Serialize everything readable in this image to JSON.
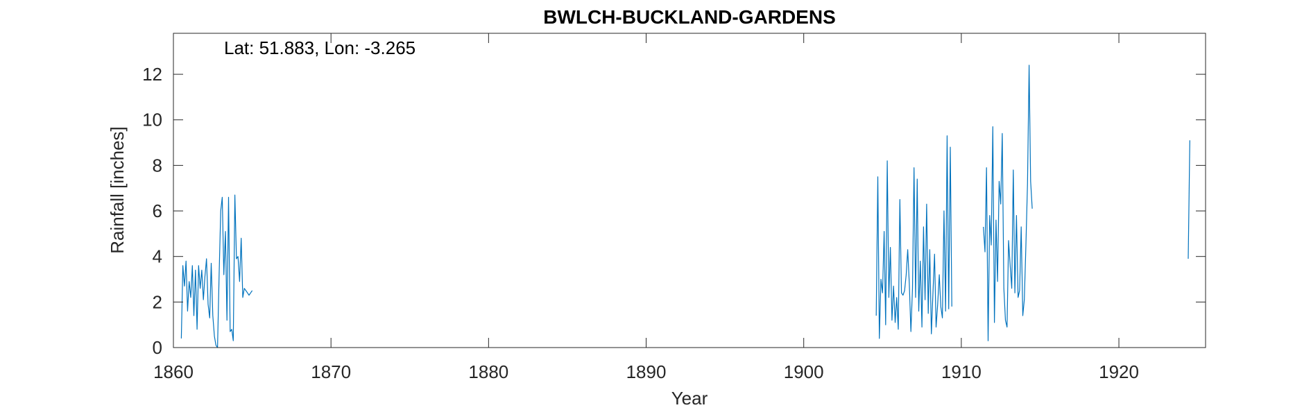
{
  "chart_data": {
    "type": "line",
    "title": "BWLCH-BUCKLAND-GARDENS",
    "annotation": "Lat: 51.883, Lon: -3.265",
    "xlabel": "Year",
    "ylabel": "Rainfall [inches]",
    "xlim": [
      1860,
      1925.5
    ],
    "ylim": [
      0,
      13.8
    ],
    "xticks": [
      "1860",
      "1870",
      "1880",
      "1890",
      "1900",
      "1910",
      "1920"
    ],
    "yticks": [
      "0",
      "2",
      "4",
      "6",
      "8",
      "10",
      "12"
    ],
    "grid": false,
    "line_color": "#0072BD",
    "segments": [
      {
        "x": [
          1860.5,
          1860.6,
          1860.7,
          1860.8,
          1860.9,
          1861.0,
          1861.1,
          1861.2,
          1861.3,
          1861.4,
          1861.5,
          1861.6,
          1861.7,
          1861.8,
          1861.9,
          1862.0,
          1862.1,
          1862.2,
          1862.3,
          1862.4,
          1862.5,
          1862.6,
          1862.7,
          1862.8,
          1862.9,
          1863.0,
          1863.1,
          1863.2,
          1863.3,
          1863.4,
          1863.5,
          1863.6,
          1863.7,
          1863.8,
          1863.9,
          1864.0,
          1864.1,
          1864.2,
          1864.3,
          1864.4,
          1864.5,
          1864.6,
          1864.7,
          1864.8,
          1864.9,
          1865.0
        ],
        "y": [
          0.4,
          3.6,
          2.7,
          3.8,
          1.6,
          2.9,
          2.2,
          3.6,
          1.4,
          3.4,
          0.8,
          3.6,
          2.6,
          3.4,
          2.1,
          3.1,
          3.9,
          1.9,
          1.3,
          3.7,
          1.4,
          0.5,
          0.1,
          0.0,
          3.2,
          6.0,
          6.6,
          3.2,
          5.1,
          1.2,
          6.6,
          0.7,
          0.8,
          0.3,
          6.7,
          3.9,
          4.0,
          2.9,
          4.8,
          2.2,
          2.6,
          2.5,
          2.4,
          2.3,
          2.4,
          2.5
        ]
      },
      {
        "x": [
          1904.6,
          1904.7,
          1904.8,
          1904.9,
          1905.0,
          1905.1,
          1905.2,
          1905.3,
          1905.4,
          1905.5,
          1905.6,
          1905.7,
          1905.8,
          1905.9,
          1906.0,
          1906.1,
          1906.2,
          1906.3,
          1906.4,
          1906.5,
          1906.6,
          1906.7,
          1906.8,
          1906.9,
          1907.0,
          1907.1,
          1907.2,
          1907.3,
          1907.4,
          1907.5,
          1907.6,
          1907.7,
          1907.8,
          1907.9,
          1908.0,
          1908.1,
          1908.2,
          1908.3,
          1908.4,
          1908.5,
          1908.6,
          1908.7,
          1908.8,
          1908.9,
          1909.0,
          1909.1,
          1909.2,
          1909.3,
          1909.4
        ],
        "y": [
          1.4,
          7.5,
          0.4,
          3.0,
          2.4,
          5.1,
          1.0,
          8.2,
          2.2,
          4.4,
          1.2,
          2.7,
          1.1,
          2.2,
          0.8,
          6.5,
          2.4,
          2.3,
          2.5,
          3.2,
          4.3,
          2.8,
          0.7,
          2.6,
          7.9,
          2.2,
          7.4,
          1.6,
          3.8,
          0.9,
          5.3,
          2.1,
          6.3,
          1.5,
          4.3,
          0.6,
          2.4,
          4.1,
          0.9,
          1.9,
          3.2,
          1.8,
          1.3,
          6.0,
          1.6,
          9.3,
          1.7,
          8.8,
          1.8
        ]
      },
      {
        "x": [
          1911.4,
          1911.5,
          1911.6,
          1911.7,
          1911.8,
          1911.9,
          1912.0,
          1912.1,
          1912.2,
          1912.3,
          1912.4,
          1912.5,
          1912.6,
          1912.7,
          1912.8,
          1912.9,
          1913.0,
          1913.1,
          1913.2,
          1913.3,
          1913.4,
          1913.5,
          1913.6,
          1913.7,
          1913.8,
          1913.9,
          1914.0,
          1914.1,
          1914.2,
          1914.3,
          1914.4,
          1914.5
        ],
        "y": [
          5.3,
          4.2,
          7.9,
          0.3,
          5.8,
          4.5,
          9.7,
          1.1,
          5.6,
          2.9,
          7.3,
          6.3,
          9.4,
          2.6,
          1.2,
          0.9,
          4.7,
          3.6,
          2.6,
          7.8,
          2.4,
          5.8,
          2.2,
          2.5,
          5.3,
          1.4,
          2.1,
          4.5,
          7.2,
          12.4,
          7.3,
          6.1
        ]
      },
      {
        "x": [
          1924.4,
          1924.5
        ],
        "y": [
          3.9,
          9.1
        ]
      }
    ]
  }
}
